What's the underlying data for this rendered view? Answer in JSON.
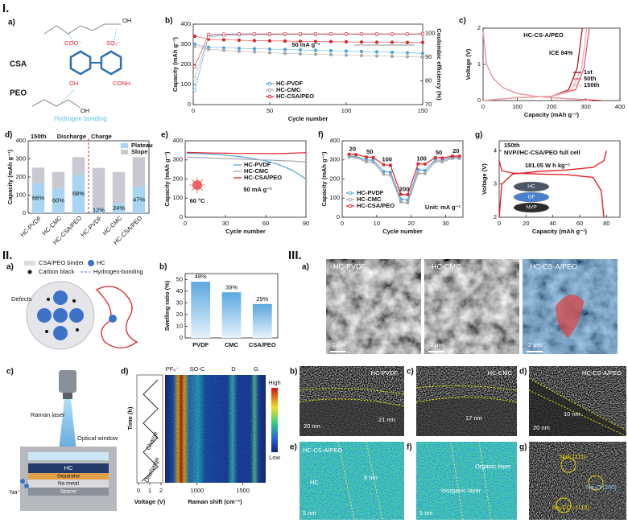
{
  "section_labels": [
    "I.",
    "II.",
    "III."
  ],
  "chart_data": [
    {
      "panel": "b)",
      "type": "line",
      "marker": "circle",
      "xlabel": "Cycle number",
      "ylabel": "Capacity (mAh g⁻¹)",
      "y2label": "Coulombic efficiency (%)",
      "annotation": "50 mA g⁻¹",
      "x": [
        1,
        10,
        20,
        30,
        40,
        50,
        60,
        70,
        80,
        90,
        100,
        110,
        120,
        130,
        140,
        150
      ],
      "xlim": [
        0,
        150
      ],
      "xticks": [
        0,
        50,
        100,
        150
      ],
      "ylim": [
        0,
        400
      ],
      "yticks": [
        0,
        100,
        200,
        300,
        400
      ],
      "y2lim": [
        70,
        104
      ],
      "y2ticks": [
        70,
        80,
        90,
        100
      ],
      "series": [
        {
          "name": "HC-PVDF",
          "color": "#4fa3dc",
          "values": [
            300,
            285,
            282,
            280,
            278,
            276,
            274,
            272,
            270,
            268,
            266,
            264,
            262,
            260,
            258,
            255
          ]
        },
        {
          "name": "HC-CMC",
          "color": "#a8a8a8",
          "values": [
            290,
            275,
            270,
            265,
            262,
            258,
            255,
            252,
            250,
            248,
            246,
            244,
            242,
            240,
            238,
            236
          ]
        },
        {
          "name": "HC-CSA/PEO",
          "color": "#e0242a",
          "values": [
            340,
            325,
            322,
            320,
            318,
            317,
            316,
            315,
            314,
            313,
            312,
            311,
            310,
            310,
            309,
            309
          ]
        },
        {
          "color": "#4fa3dc",
          "axis": "y2",
          "values": [
            76,
            99,
            99.5,
            99.6,
            99.6,
            99.7,
            99.7,
            99.7,
            99.8,
            99.8,
            99.8,
            99.8,
            99.8,
            99.8,
            99.8,
            99.8
          ]
        },
        {
          "color": "#a8a8a8",
          "axis": "y2",
          "values": [
            81,
            98.6,
            99.2,
            99.4,
            99.5,
            99.5,
            99.6,
            99.6,
            99.6,
            99.7,
            99.7,
            99.7,
            99.7,
            99.7,
            99.7,
            99.7
          ]
        },
        {
          "color": "#e0242a",
          "axis": "y2",
          "values": [
            86,
            99.6,
            99.8,
            99.9,
            99.9,
            99.9,
            99.9,
            99.9,
            99.9,
            99.9,
            99.9,
            99.9,
            99.9,
            99.9,
            99.9,
            99.9
          ]
        }
      ]
    },
    {
      "panel": "c)",
      "type": "line",
      "title": "HC-CS-A/PEO",
      "annotation": "ICE 84%",
      "xlabel": "Capacity (mAh g⁻¹)",
      "ylabel": "Voltage (V)",
      "xlim": [
        0,
        400
      ],
      "xticks": [
        0,
        100,
        200,
        300,
        400
      ],
      "ylim": [
        0,
        2
      ],
      "yticks": [
        0,
        1,
        2
      ],
      "series": [
        {
          "name": "1st",
          "color": "#9b0d18",
          "x": [
            0,
            10,
            30,
            60,
            100,
            150,
            250,
            345,
            null,
            0,
            100,
            200,
            250,
            275,
            290
          ],
          "values": [
            1.9,
            1.0,
            0.6,
            0.35,
            0.2,
            0.12,
            0.05,
            0,
            null,
            0,
            0.08,
            0.12,
            0.3,
            0.9,
            2.0
          ]
        },
        {
          "name": "50th",
          "color": "#e05060",
          "x": [
            0,
            10,
            30,
            60,
            100,
            150,
            250,
            320,
            null,
            0,
            100,
            200,
            270,
            295,
            310
          ],
          "values": [
            1.9,
            1.0,
            0.6,
            0.35,
            0.2,
            0.12,
            0.05,
            0,
            null,
            0,
            0.08,
            0.12,
            0.3,
            0.9,
            2.0
          ]
        },
        {
          "name": "150th",
          "color": "#f2a6ae",
          "x": [
            0,
            10,
            30,
            60,
            100,
            150,
            250,
            310,
            null,
            0,
            100,
            200,
            260,
            288,
            303
          ],
          "values": [
            1.9,
            1.0,
            0.6,
            0.35,
            0.2,
            0.12,
            0.05,
            0,
            null,
            0,
            0.08,
            0.12,
            0.3,
            0.9,
            2.0
          ]
        }
      ]
    },
    {
      "panel": "d)",
      "type": "bar",
      "stacked": true,
      "title": "150th",
      "discharge_label": "Discharge",
      "charge_label": "Charge",
      "ylabel": "Capacity (mAh g⁻¹)",
      "categories": [
        "HC-PVDF",
        "HC-CMC",
        "HC-CSA/PEO",
        "HC-PVDF",
        "HC-CMC",
        "HC-CSA/PEO"
      ],
      "ylim": [
        0,
        400
      ],
      "yticks": [
        0,
        100,
        200,
        300,
        400
      ],
      "series": [
        {
          "name": "Plateau",
          "color": "#a9d5f2",
          "values": [
            166,
            137,
            211,
            30,
            55,
            146
          ]
        },
        {
          "name": "Slope",
          "color": "#c9c9d2",
          "values": [
            86,
            91,
            99,
            220,
            173,
            164
          ]
        }
      ],
      "plateau_share_labels": [
        "66%",
        "60%",
        "68%",
        "12%",
        "24%",
        "47%"
      ]
    },
    {
      "panel": "e)",
      "type": "line",
      "annotation": "50 mA g⁻¹",
      "temperature": "60 °C",
      "xlabel": "Cycle number",
      "ylabel": "Capacity (mAh g⁻¹)",
      "x": [
        1,
        10,
        20,
        30,
        40,
        50,
        60,
        70,
        80,
        90
      ],
      "xlim": [
        0,
        90
      ],
      "xticks": [
        0,
        30,
        60,
        90
      ],
      "ylim": [
        0,
        400
      ],
      "yticks": [
        0,
        100,
        200,
        300,
        400
      ],
      "series": [
        {
          "name": "HC-PVDF",
          "color": "#4fa3dc",
          "values": [
            335,
            333,
            330,
            325,
            318,
            308,
            295,
            275,
            245,
            200
          ]
        },
        {
          "name": "HC-CMC",
          "color": "#a8a8a8",
          "values": [
            315,
            312,
            310,
            307,
            305,
            302,
            300,
            297,
            294,
            290
          ]
        },
        {
          "name": "HC-CSA/PEO",
          "color": "#e0242a",
          "values": [
            340,
            338,
            336,
            335,
            334,
            334,
            333,
            333,
            335,
            338
          ]
        }
      ]
    },
    {
      "panel": "f)",
      "type": "line",
      "marker": "square",
      "annotation": "Unit: mA g⁻¹",
      "rate_labels": [
        "20",
        "50",
        "100",
        "200",
        "100",
        "50",
        "20"
      ],
      "xlabel": "Cycle number",
      "ylabel": "Capacity (mAh g⁻¹)",
      "x": [
        2,
        4,
        7,
        9,
        12,
        14,
        17,
        19,
        22,
        24,
        27,
        29,
        32,
        34
      ],
      "xlim": [
        0,
        35
      ],
      "xticks": [
        0,
        10,
        20,
        30
      ],
      "ylim": [
        0,
        400
      ],
      "yticks": [
        0,
        100,
        200,
        300,
        400
      ],
      "series": [
        {
          "name": "HC-PVDF",
          "color": "#4fa3dc",
          "values": [
            320,
            318,
            300,
            298,
            240,
            235,
            95,
            90,
            250,
            245,
            300,
            298,
            315,
            314
          ]
        },
        {
          "name": "HC-CMC",
          "color": "#a8a8a8",
          "values": [
            315,
            313,
            290,
            288,
            225,
            220,
            80,
            75,
            230,
            228,
            292,
            290,
            308,
            307
          ]
        },
        {
          "name": "HC-CSA/PEO",
          "color": "#e0242a",
          "values": [
            330,
            328,
            315,
            313,
            275,
            272,
            120,
            118,
            280,
            278,
            312,
            310,
            320,
            320
          ]
        }
      ]
    },
    {
      "panel": "g)",
      "type": "line",
      "title": "150th",
      "subtitle": "NVP//HC-CSA/PEO full cell",
      "annotation": "181.05 W h kg⁻¹",
      "stack_labels": [
        "HC",
        "GF",
        "NVP"
      ],
      "xlabel": "Capacity (mAh g⁻¹)",
      "ylabel": "Voltage (V)",
      "xlim": [
        0,
        90
      ],
      "xticks": [
        0,
        20,
        40,
        60,
        80
      ],
      "ylim": [
        2,
        4.3
      ],
      "yticks": [
        2,
        3,
        4
      ],
      "series": [
        {
          "color": "#e0242a",
          "x": [
            0,
            2,
            10,
            30,
            50,
            70,
            78,
            80,
            null,
            0,
            2,
            10,
            30,
            50,
            70,
            76,
            78
          ],
          "values": [
            2.0,
            3.0,
            3.3,
            3.38,
            3.42,
            3.5,
            3.7,
            4.0,
            null,
            3.7,
            3.4,
            3.33,
            3.3,
            3.28,
            3.2,
            2.8,
            2.0
          ]
        }
      ]
    },
    {
      "panel": "b)",
      "type": "bar",
      "ylabel": "Swelling ratio (%)",
      "categories": [
        "PVDF",
        "CMC",
        "CSA/PEO"
      ],
      "values": [
        48,
        39,
        29
      ],
      "value_labels": [
        "48%",
        "39%",
        "29%"
      ],
      "color": "#5aa8e0",
      "ylim": [
        0,
        55
      ],
      "yticks": [
        0,
        10,
        20,
        30,
        40,
        50
      ]
    }
  ],
  "panels": {
    "I_a": {
      "label": "a)",
      "names": [
        "CSA",
        "PEO"
      ],
      "groups": [
        "COO⁻",
        "SO₃⁻",
        "OH",
        "CONH",
        "OH",
        "OH"
      ],
      "caption": "Hydrogen bonding"
    },
    "II_a": {
      "label": "a)",
      "legend": [
        "CSA/PEO binder",
        "HC",
        "Carbon black",
        "Hydrogen-bonding"
      ],
      "defects": "Defects"
    },
    "II_c": {
      "label": "c)",
      "texts": [
        "Raman laser",
        "Optical window",
        "HC",
        "Separator",
        "Na metal",
        "Spacer",
        "Na⁺"
      ]
    },
    "II_d": {
      "label": "d)",
      "peaks": [
        "PF₆⁻",
        "SO-C",
        "D",
        "G"
      ],
      "scale": [
        "High",
        "Low"
      ],
      "ylabel": "Time (h)",
      "steps": [
        "Charge",
        "Discharge"
      ],
      "voltage_label": "Voltage (V)",
      "voltage_lim": [
        0,
        2
      ],
      "voltage_ticks": [
        0,
        1,
        2
      ],
      "xlabel": "Raman shift (cm⁻¹)",
      "xlim": [
        650,
        1750
      ],
      "xticks": [
        1000,
        1500
      ]
    },
    "III_a": {
      "label": "a)",
      "images": [
        {
          "title": "HC-PVDF",
          "scale": "2 μm"
        },
        {
          "title": "HC-CMC",
          "scale": "2 μm"
        },
        {
          "title": "HC-CS-A/PEO",
          "scale": "2 μm"
        }
      ]
    },
    "III_b": {
      "label": "b)",
      "title": "HC-PVDF",
      "scale": "20 nm",
      "thickness": "21 nm"
    },
    "III_c": {
      "label": "c)",
      "title": "HC-CMC",
      "thickness": "17 nm"
    },
    "III_d": {
      "label": "d)",
      "title": "HC-CS-A/PEO",
      "scale": "20 nm",
      "thickness": "10 nm"
    },
    "III_e": {
      "label": "e)",
      "title": "HC-CS-A/PEO",
      "region": "HC",
      "thickness": "9 nm",
      "scale": "5 nm"
    },
    "III_f": {
      "label": "f)",
      "regions": [
        "Organic layer",
        "Inorganic layer"
      ],
      "scale": "5 nm"
    },
    "III_g": {
      "label": "g)",
      "phases": [
        "NaF (111)",
        "Na₂O (200)",
        "Na₂CO₃ (110)"
      ]
    }
  }
}
